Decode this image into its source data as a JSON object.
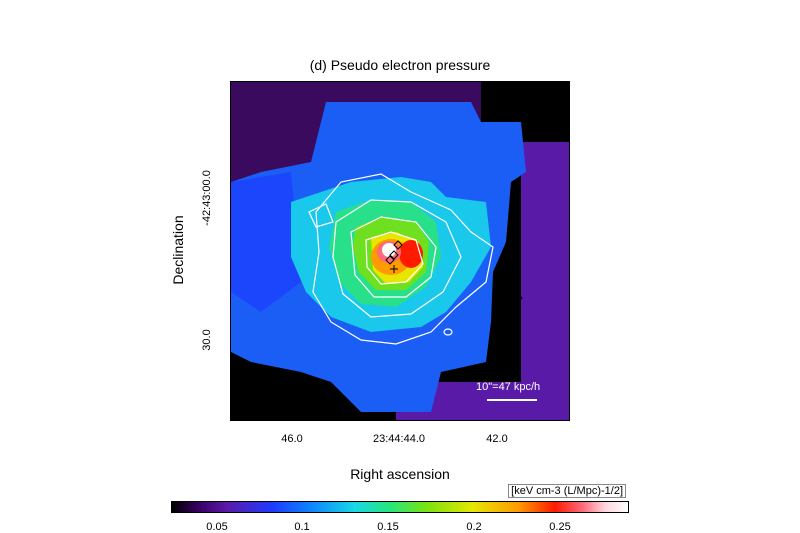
{
  "title": "(d) Pseudo electron pressure",
  "axes": {
    "xlabel": "Right ascension",
    "ylabel": "Declination",
    "xticks": [
      "46.0",
      "23:44:44.0",
      "42.0"
    ],
    "yticks": [
      "-42:43:00.0",
      "30.0"
    ]
  },
  "colorbar": {
    "units": "[keV cm-3 (L/Mpc)-1/2]",
    "ticks": [
      "0.05",
      "0.1",
      "0.15",
      "0.2",
      "0.25"
    ]
  },
  "scale_bar": "10\"=47 kpc/h"
}
